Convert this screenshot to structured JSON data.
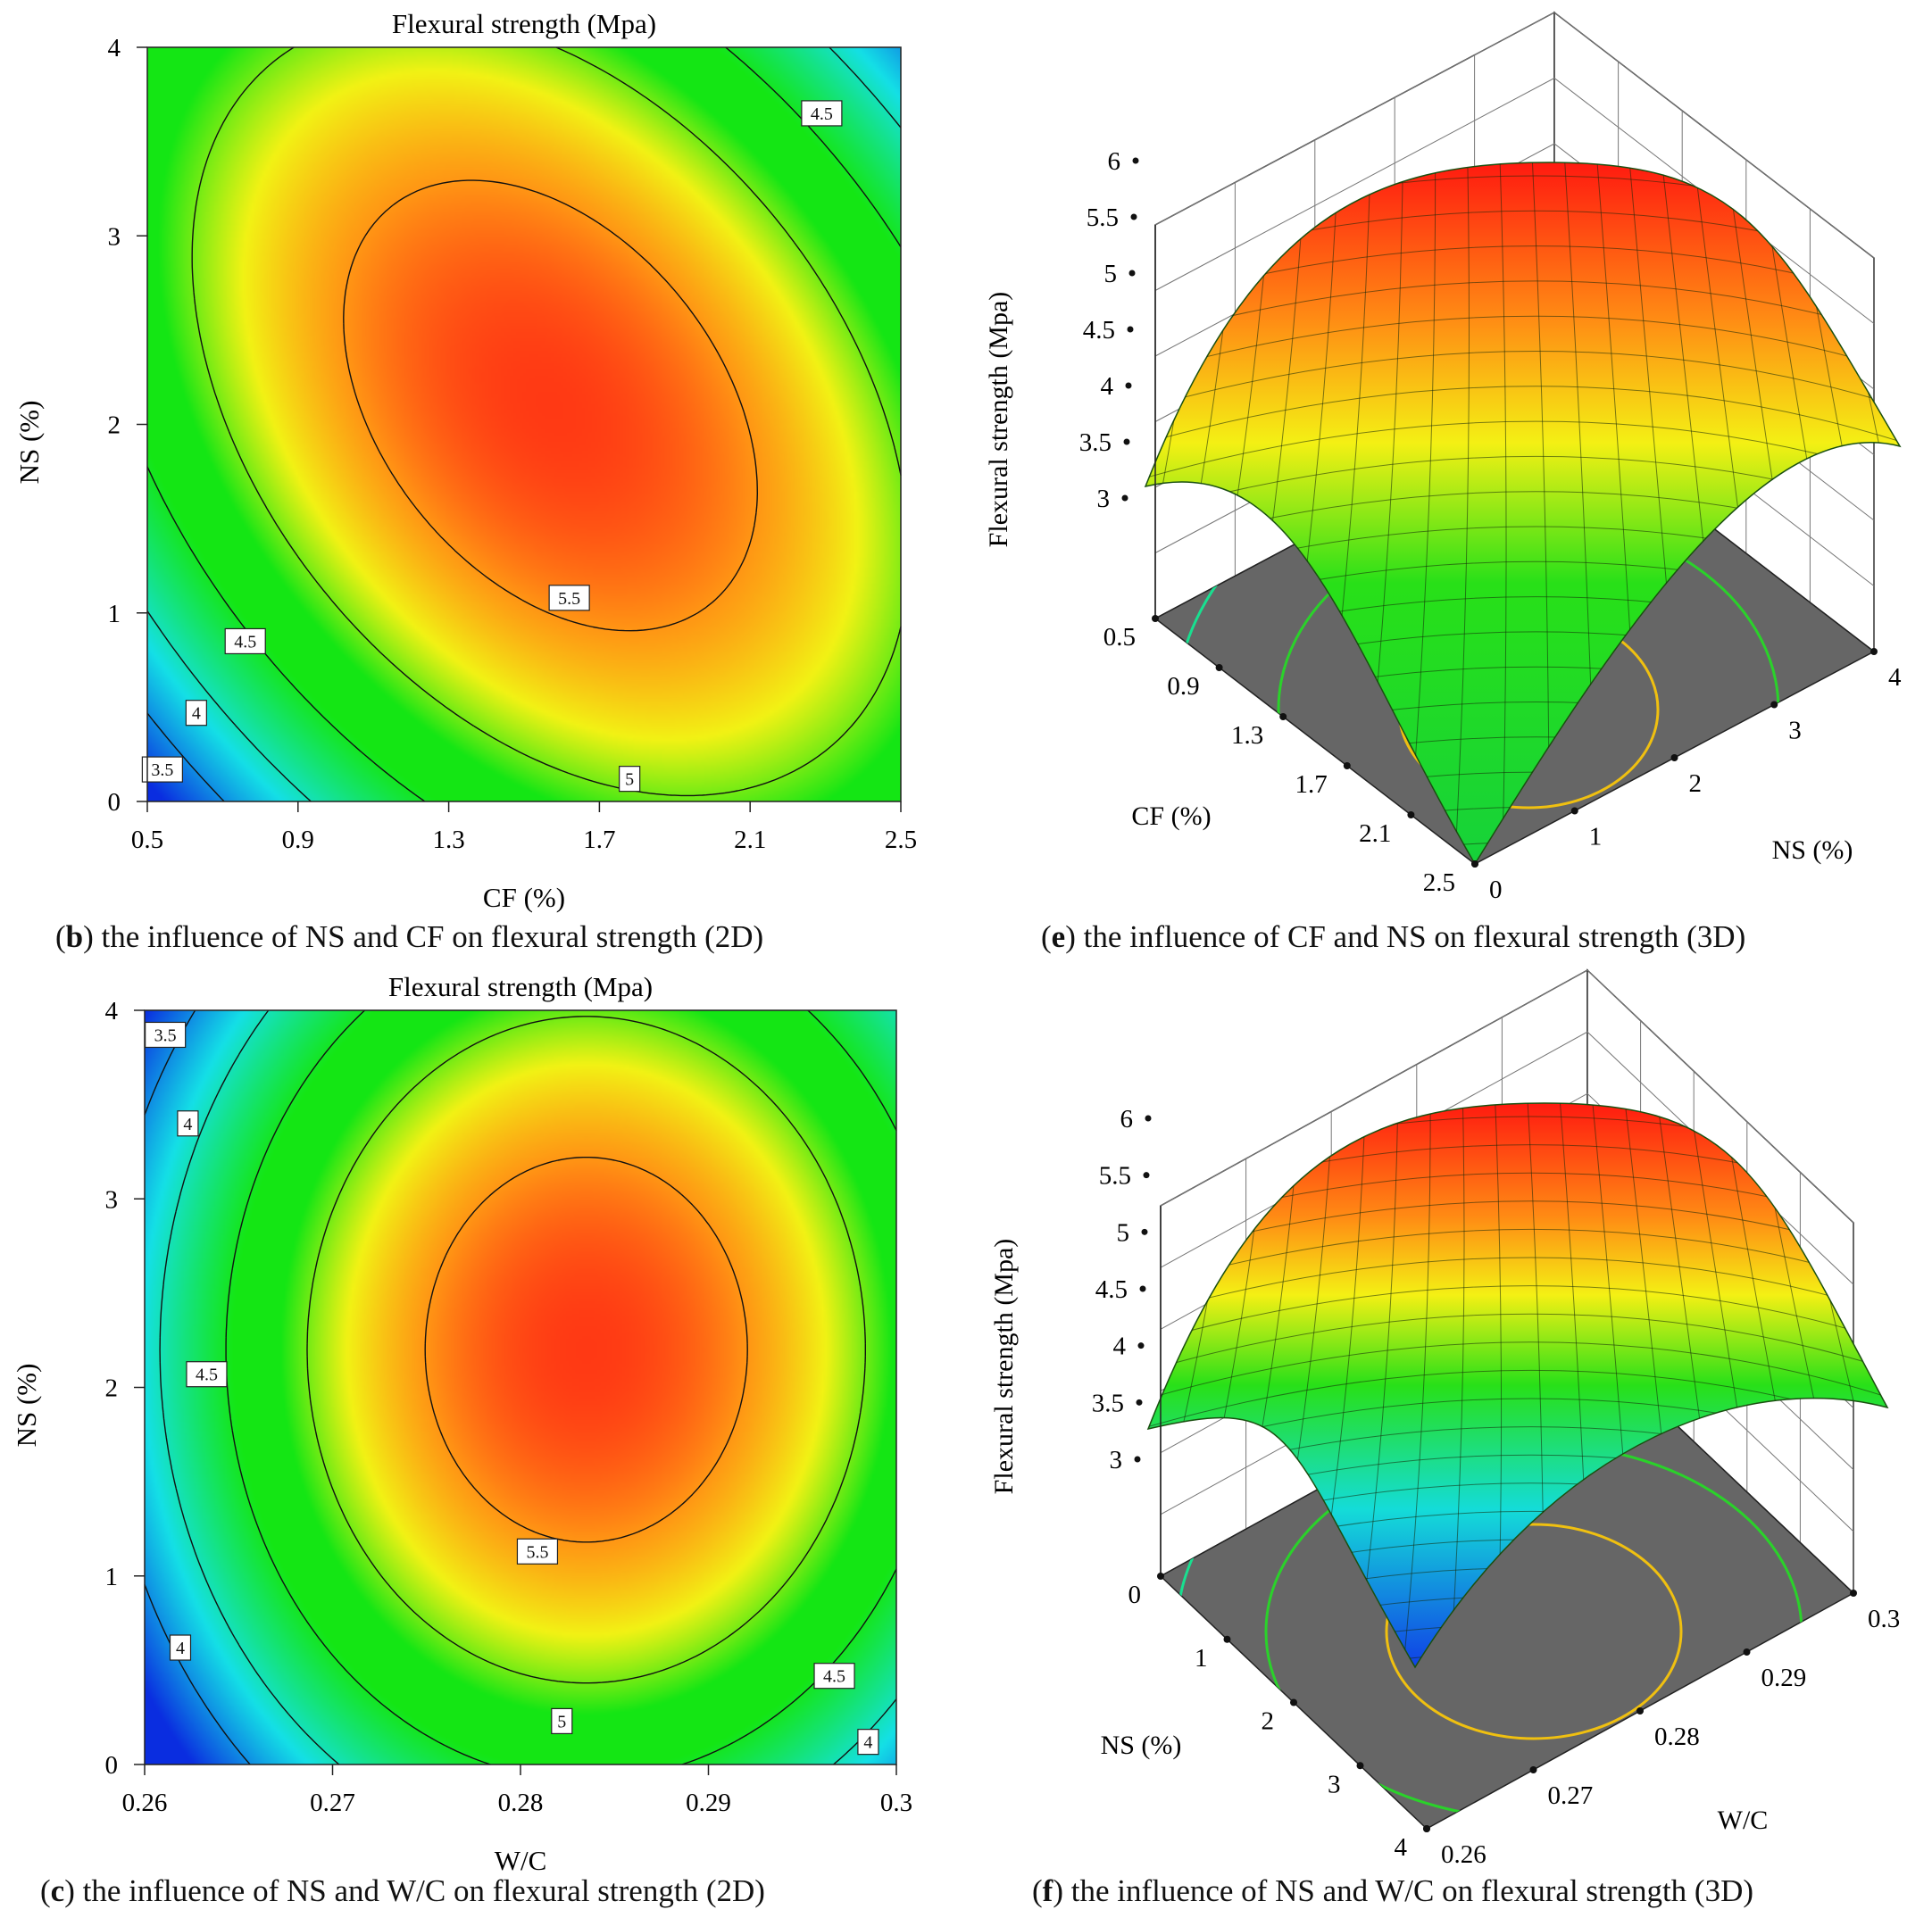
{
  "figure_captions": {
    "b": {
      "letter": "b",
      "text": " the influence of NS and CF on flexural strength (2D)"
    },
    "e": {
      "letter": "e",
      "text": " the influence of CF and NS on flexural strength (3D)"
    },
    "c": {
      "letter": "c",
      "text": " the influence of NS and W/C on flexural strength (2D)"
    },
    "f": {
      "letter": "f",
      "text": " the influence of NS and W/C on flexural strength (3D)"
    }
  },
  "colors": {
    "low": "#0a2de0",
    "cyan": "#14e0e6",
    "green": "#14e614",
    "yellow": "#f2f214",
    "orange": "#ff9614",
    "high": "#ff1414",
    "floor": "#666666",
    "contour": "#111111"
  },
  "chart_data": [
    {
      "id": "b",
      "type": "contour",
      "title": "Flexural strength (Mpa)",
      "xlabel": "CF (%)",
      "ylabel": "NS (%)",
      "xlim": [
        0.5,
        2.5
      ],
      "ylim": [
        0,
        4
      ],
      "xticks": [
        "0.5",
        "0.9",
        "1.3",
        "1.7",
        "2.1",
        "2.5"
      ],
      "xtick_values": [
        0.5,
        0.9,
        1.3,
        1.7,
        2.1,
        2.5
      ],
      "yticks": [
        "0",
        "1",
        "2",
        "3",
        "4"
      ],
      "ytick_values": [
        0,
        1,
        2,
        3,
        4
      ],
      "contour_levels": [
        3.5,
        4,
        4.5,
        5,
        5.5
      ],
      "model": {
        "peak": 5.75,
        "cx": 1.57,
        "cy": 2.1,
        "a": 0.97,
        "b": 0.205,
        "c": 0.34
      },
      "contour_labels": [
        {
          "text": "5.5",
          "x": 1.62,
          "y": 1.08
        },
        {
          "text": "5",
          "x": 1.78,
          "y": 0.12
        },
        {
          "text": "4.5",
          "x": 0.76,
          "y": 0.85
        },
        {
          "text": "4",
          "x": 0.63,
          "y": 0.47
        },
        {
          "text": "3.5",
          "x": 0.54,
          "y": 0.17
        },
        {
          "text": "4.5",
          "x": 2.29,
          "y": 3.65
        }
      ]
    },
    {
      "id": "e",
      "type": "surface3d",
      "zlabel": "Flexural strength (Mpa)",
      "xlabel": "CF (%)",
      "ylabel": "NS (%)",
      "zticks": [
        "3",
        "3.5",
        "4",
        "4.5",
        "5",
        "5.5",
        "6"
      ],
      "ztick_values": [
        3,
        3.5,
        4,
        4.5,
        5,
        5.5,
        6
      ],
      "xticks": [
        "0.5",
        "0.9",
        "1.3",
        "1.7",
        "2.1",
        "2.5"
      ],
      "yticks": [
        "0",
        "1",
        "2",
        "3",
        "4"
      ],
      "zlim": [
        3,
        6
      ],
      "xlim": [
        0.5,
        2.5
      ],
      "ylim": [
        0,
        4
      ]
    },
    {
      "id": "c",
      "type": "contour",
      "title": "Flexural strength (Mpa)",
      "xlabel": "W/C",
      "ylabel": "NS (%)",
      "xlim": [
        0.26,
        0.3
      ],
      "ylim": [
        0,
        4
      ],
      "xticks": [
        "0.26",
        "0.27",
        "0.28",
        "0.29",
        "0.3"
      ],
      "xtick_values": [
        0.26,
        0.27,
        0.28,
        0.29,
        0.3
      ],
      "yticks": [
        "0",
        "1",
        "2",
        "3",
        "4"
      ],
      "ytick_values": [
        0,
        1,
        2,
        3,
        4
      ],
      "contour_levels": [
        3.5,
        4,
        4.5,
        5,
        5.5
      ],
      "model": {
        "peak": 5.75,
        "cx": 0.2835,
        "cy": 2.2,
        "a": 3400,
        "b": 0.24,
        "c": 0
      },
      "contour_labels": [
        {
          "text": "3.5",
          "x": 0.2611,
          "y": 3.87
        },
        {
          "text": "4",
          "x": 0.2623,
          "y": 3.4
        },
        {
          "text": "4.5",
          "x": 0.2633,
          "y": 2.07
        },
        {
          "text": "4",
          "x": 0.2619,
          "y": 0.62
        },
        {
          "text": "5.5",
          "x": 0.2809,
          "y": 1.13
        },
        {
          "text": "5",
          "x": 0.2822,
          "y": 0.23
        },
        {
          "text": "4.5",
          "x": 0.2967,
          "y": 0.47
        },
        {
          "text": "4",
          "x": 0.2985,
          "y": 0.12
        }
      ]
    },
    {
      "id": "f",
      "type": "surface3d",
      "zlabel": "Flexural strength (Mpa)",
      "xlabel": "NS (%)",
      "ylabel": "W/C",
      "zticks": [
        "3",
        "3.5",
        "4",
        "4.5",
        "5",
        "5.5",
        "6"
      ],
      "ztick_values": [
        3,
        3.5,
        4,
        4.5,
        5,
        5.5,
        6
      ],
      "xticks": [
        "0",
        "1",
        "2",
        "3",
        "4"
      ],
      "yticks": [
        "0.26",
        "0.27",
        "0.28",
        "0.29",
        "0.3"
      ],
      "zlim": [
        3,
        6
      ],
      "xlim": [
        0,
        4
      ],
      "ylim": [
        0.26,
        0.3
      ]
    }
  ]
}
